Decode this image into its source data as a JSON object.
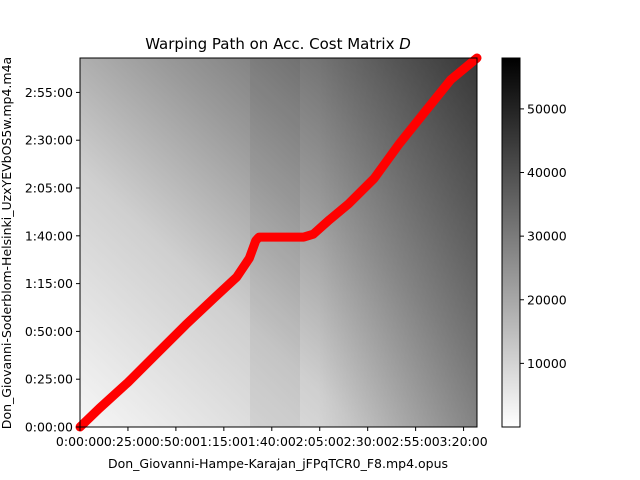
{
  "chart_data": {
    "type": "heatmap",
    "title": "Warping Path on Acc. Cost Matrix",
    "title_math": "D",
    "xlabel": "Don_Giovanni-Hampe-Karajan_jFPqTCR0_F8.mp4.opus",
    "ylabel": "Don_Giovanni-Soderblom-Helsinki_UzxYEVbOS5w.mp4.m4a",
    "xlim_seconds": [
      0,
      12420
    ],
    "ylim_seconds": [
      0,
      11580
    ],
    "x_ticks": [
      {
        "value": 0,
        "label": "0:00:00"
      },
      {
        "value": 1500,
        "label": "0:25:00"
      },
      {
        "value": 3000,
        "label": "0:50:00"
      },
      {
        "value": 4500,
        "label": "1:15:00"
      },
      {
        "value": 6000,
        "label": "1:40:00"
      },
      {
        "value": 7500,
        "label": "2:05:00"
      },
      {
        "value": 9000,
        "label": "2:30:00"
      },
      {
        "value": 10500,
        "label": "2:55:00"
      },
      {
        "value": 12000,
        "label": "3:20:00"
      }
    ],
    "y_ticks": [
      {
        "value": 0,
        "label": "0:00:00"
      },
      {
        "value": 1500,
        "label": "0:25:00"
      },
      {
        "value": 3000,
        "label": "0:50:00"
      },
      {
        "value": 4500,
        "label": "1:15:00"
      },
      {
        "value": 6000,
        "label": "1:40:00"
      },
      {
        "value": 7500,
        "label": "2:05:00"
      },
      {
        "value": 9000,
        "label": "2:30:00"
      },
      {
        "value": 10500,
        "label": "2:55:00"
      }
    ],
    "colorbar": {
      "colormap": "gray_r",
      "range": [
        0,
        58000
      ],
      "ticks": [
        {
          "value": 10000,
          "label": "10000"
        },
        {
          "value": 20000,
          "label": "20000"
        },
        {
          "value": 30000,
          "label": "30000"
        },
        {
          "value": 40000,
          "label": "40000"
        },
        {
          "value": 50000,
          "label": "50000"
        }
      ]
    },
    "series": [
      {
        "color": "#ff0000",
        "points": [
          [
            0,
            0
          ],
          [
            600,
            580
          ],
          [
            1500,
            1400
          ],
          [
            2400,
            2300
          ],
          [
            3300,
            3200
          ],
          [
            4200,
            4050
          ],
          [
            4900,
            4700
          ],
          [
            5300,
            5300
          ],
          [
            5500,
            5850
          ],
          [
            5600,
            5960
          ],
          [
            6400,
            5960
          ],
          [
            7000,
            5960
          ],
          [
            7300,
            6050
          ],
          [
            7800,
            6500
          ],
          [
            8400,
            7000
          ],
          [
            9200,
            7800
          ],
          [
            10000,
            8900
          ],
          [
            10800,
            9900
          ],
          [
            11600,
            10900
          ],
          [
            12420,
            11580
          ]
        ]
      }
    ]
  }
}
